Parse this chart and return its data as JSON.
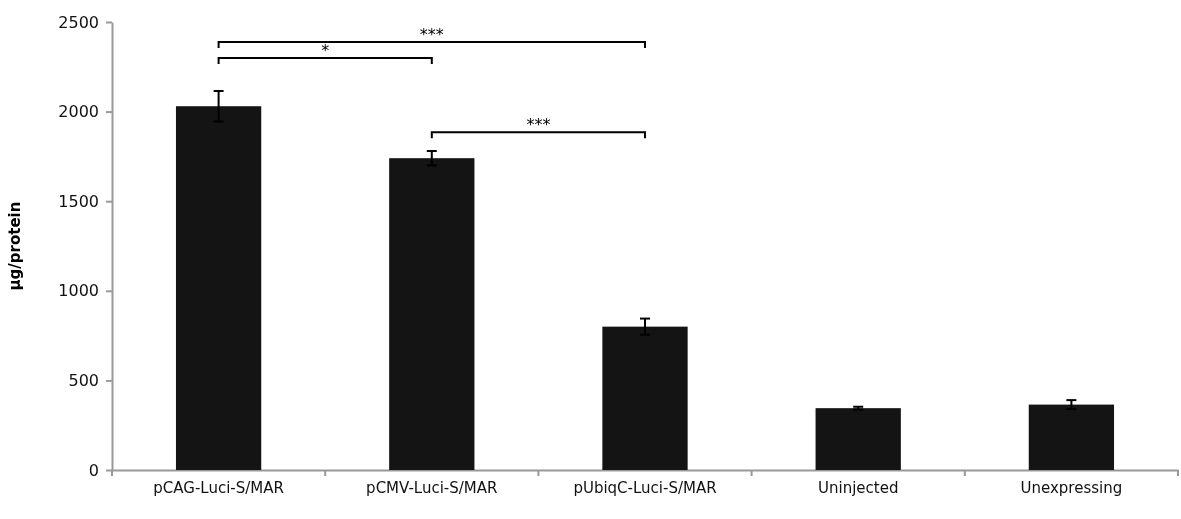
{
  "chart_data": {
    "type": "bar",
    "ylabel": "µg/protein",
    "categories": [
      "pCAG-Luci-S/MAR",
      "pCMV-Luci-S/MAR",
      "pUbiqC-Luci-S/MAR",
      "Uninjected",
      "Unexpressing"
    ],
    "values": [
      2030,
      1740,
      800,
      345,
      365
    ],
    "errors": [
      85,
      40,
      45,
      8,
      25
    ],
    "color": "#141414",
    "ylim": [
      0,
      2500
    ],
    "yticks": [
      0,
      500,
      1000,
      1500,
      2000,
      2500
    ],
    "annotations": [
      "*",
      "***",
      "***"
    ]
  }
}
